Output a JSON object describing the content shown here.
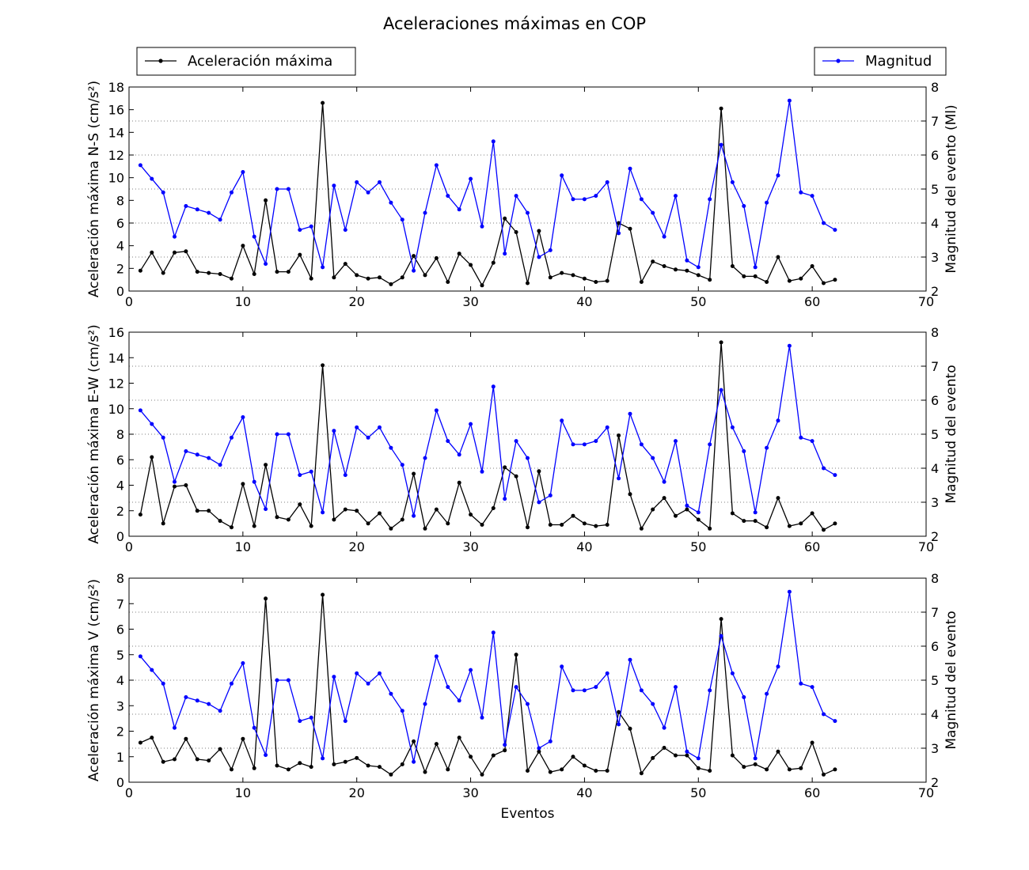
{
  "figure": {
    "title": "Aceleraciones máximas en COP",
    "xlabel": "Eventos"
  },
  "legend": {
    "left_label": "Aceleración máxima",
    "right_label": "Magnitud",
    "left_color": "#000000",
    "right_color": "#0000ff"
  },
  "chart_data": [
    {
      "type": "line",
      "x": [
        1,
        2,
        3,
        4,
        5,
        6,
        7,
        8,
        9,
        10,
        11,
        12,
        13,
        14,
        15,
        16,
        17,
        18,
        19,
        20,
        21,
        22,
        23,
        24,
        25,
        26,
        27,
        28,
        29,
        30,
        31,
        32,
        33,
        34,
        35,
        36,
        37,
        38,
        39,
        40,
        41,
        42,
        43,
        44,
        45,
        46,
        47,
        48,
        49,
        50,
        51,
        52,
        53,
        54,
        55,
        56,
        57,
        58,
        59,
        60,
        61,
        62
      ],
      "xlim": [
        0,
        70
      ],
      "xticks": [
        0,
        10,
        20,
        30,
        40,
        50,
        60,
        70
      ],
      "ylabel": "Aceleración máxima N-S (cm/s²)",
      "ylim": [
        0,
        18
      ],
      "yticks": [
        0,
        2,
        4,
        6,
        8,
        10,
        12,
        14,
        16,
        18
      ],
      "y2label": "Magnitud del evento (Ml)",
      "y2lim": [
        2,
        8
      ],
      "y2ticks": [
        2,
        3,
        4,
        5,
        6,
        7,
        8
      ],
      "grid": "horizontal-dotted",
      "series": [
        {
          "name": "Aceleración máxima",
          "axis": "left",
          "color": "#000000",
          "values": [
            1.8,
            3.4,
            1.6,
            3.4,
            3.5,
            1.7,
            1.6,
            1.5,
            1.1,
            4.0,
            1.5,
            8.0,
            1.7,
            1.7,
            3.2,
            1.1,
            16.6,
            1.2,
            2.4,
            1.4,
            1.1,
            1.2,
            0.6,
            1.2,
            3.1,
            1.4,
            2.9,
            0.8,
            3.3,
            2.3,
            0.5,
            2.5,
            6.4,
            5.2,
            0.7,
            5.3,
            1.2,
            1.6,
            1.4,
            1.1,
            0.8,
            0.9,
            6.0,
            5.5,
            0.8,
            2.6,
            2.2,
            1.9,
            1.8,
            1.4,
            1.0,
            16.1,
            2.2,
            1.3,
            1.3,
            0.8,
            3.0,
            0.9,
            1.1,
            2.2,
            0.7,
            1.0
          ]
        },
        {
          "name": "Magnitud",
          "axis": "right",
          "color": "#0000ff",
          "values": [
            5.7,
            5.3,
            4.9,
            3.6,
            4.5,
            4.4,
            4.3,
            4.1,
            4.9,
            5.5,
            3.6,
            2.8,
            5.0,
            5.0,
            3.8,
            3.9,
            2.7,
            5.1,
            3.8,
            5.2,
            4.9,
            5.2,
            4.6,
            4.1,
            2.6,
            4.3,
            5.7,
            4.8,
            4.4,
            5.3,
            3.9,
            6.4,
            3.1,
            4.8,
            4.3,
            3.0,
            3.2,
            5.4,
            4.7,
            4.7,
            4.8,
            5.2,
            3.7,
            5.6,
            4.7,
            4.3,
            3.6,
            4.8,
            2.9,
            2.7,
            4.7,
            6.3,
            5.2,
            4.5,
            2.7,
            4.6,
            5.4,
            7.6,
            4.9,
            4.8,
            4.0,
            3.8
          ]
        }
      ]
    },
    {
      "type": "line",
      "x": [
        1,
        2,
        3,
        4,
        5,
        6,
        7,
        8,
        9,
        10,
        11,
        12,
        13,
        14,
        15,
        16,
        17,
        18,
        19,
        20,
        21,
        22,
        23,
        24,
        25,
        26,
        27,
        28,
        29,
        30,
        31,
        32,
        33,
        34,
        35,
        36,
        37,
        38,
        39,
        40,
        41,
        42,
        43,
        44,
        45,
        46,
        47,
        48,
        49,
        50,
        51,
        52,
        53,
        54,
        55,
        56,
        57,
        58,
        59,
        60,
        61,
        62
      ],
      "xlim": [
        0,
        70
      ],
      "xticks": [
        0,
        10,
        20,
        30,
        40,
        50,
        60,
        70
      ],
      "ylabel": "Aceleración máxima E-W (cm/s²)",
      "ylim": [
        0,
        16
      ],
      "yticks": [
        0,
        2,
        4,
        6,
        8,
        10,
        12,
        14,
        16
      ],
      "y2label": "Magnitud del evento",
      "y2lim": [
        2,
        8
      ],
      "y2ticks": [
        2,
        3,
        4,
        5,
        6,
        7,
        8
      ],
      "grid": "horizontal-dotted",
      "series": [
        {
          "name": "Aceleración máxima",
          "axis": "left",
          "color": "#000000",
          "values": [
            1.7,
            6.2,
            1.0,
            3.9,
            4.0,
            2.0,
            2.0,
            1.2,
            0.7,
            4.1,
            0.8,
            5.6,
            1.5,
            1.3,
            2.5,
            0.8,
            13.4,
            1.3,
            2.1,
            2.0,
            1.0,
            1.8,
            0.6,
            1.3,
            4.9,
            0.6,
            2.1,
            1.0,
            4.2,
            1.7,
            0.9,
            2.2,
            5.4,
            4.7,
            0.7,
            5.1,
            0.9,
            0.9,
            1.6,
            1.0,
            0.8,
            0.9,
            7.9,
            3.3,
            0.6,
            2.1,
            3.0,
            1.6,
            2.1,
            1.3,
            0.6,
            15.2,
            1.8,
            1.2,
            1.2,
            0.7,
            3.0,
            0.8,
            1.0,
            1.8,
            0.5,
            1.0
          ]
        },
        {
          "name": "Magnitud",
          "axis": "right",
          "color": "#0000ff",
          "values": [
            5.7,
            5.3,
            4.9,
            3.6,
            4.5,
            4.4,
            4.3,
            4.1,
            4.9,
            5.5,
            3.6,
            2.8,
            5.0,
            5.0,
            3.8,
            3.9,
            2.7,
            5.1,
            3.8,
            5.2,
            4.9,
            5.2,
            4.6,
            4.1,
            2.6,
            4.3,
            5.7,
            4.8,
            4.4,
            5.3,
            3.9,
            6.4,
            3.1,
            4.8,
            4.3,
            3.0,
            3.2,
            5.4,
            4.7,
            4.7,
            4.8,
            5.2,
            3.7,
            5.6,
            4.7,
            4.3,
            3.6,
            4.8,
            2.9,
            2.7,
            4.7,
            6.3,
            5.2,
            4.5,
            2.7,
            4.6,
            5.4,
            7.6,
            4.9,
            4.8,
            4.0,
            3.8
          ]
        }
      ]
    },
    {
      "type": "line",
      "x": [
        1,
        2,
        3,
        4,
        5,
        6,
        7,
        8,
        9,
        10,
        11,
        12,
        13,
        14,
        15,
        16,
        17,
        18,
        19,
        20,
        21,
        22,
        23,
        24,
        25,
        26,
        27,
        28,
        29,
        30,
        31,
        32,
        33,
        34,
        35,
        36,
        37,
        38,
        39,
        40,
        41,
        42,
        43,
        44,
        45,
        46,
        47,
        48,
        49,
        50,
        51,
        52,
        53,
        54,
        55,
        56,
        57,
        58,
        59,
        60,
        61,
        62
      ],
      "xlim": [
        0,
        70
      ],
      "xticks": [
        0,
        10,
        20,
        30,
        40,
        50,
        60,
        70
      ],
      "ylabel": "Aceleración máxima V (cm/s²)",
      "ylim": [
        0,
        8
      ],
      "yticks": [
        0,
        1,
        2,
        3,
        4,
        5,
        6,
        7,
        8
      ],
      "y2label": "Magnitud del evento",
      "y2lim": [
        2,
        8
      ],
      "y2ticks": [
        2,
        3,
        4,
        5,
        6,
        7,
        8
      ],
      "grid": "horizontal-dotted",
      "series": [
        {
          "name": "Aceleración máxima",
          "axis": "left",
          "color": "#000000",
          "values": [
            1.55,
            1.75,
            0.8,
            0.9,
            1.7,
            0.9,
            0.85,
            1.3,
            0.5,
            1.7,
            0.55,
            7.2,
            0.65,
            0.5,
            0.75,
            0.6,
            7.35,
            0.7,
            0.8,
            0.95,
            0.65,
            0.6,
            0.3,
            0.7,
            1.6,
            0.4,
            1.5,
            0.5,
            1.75,
            1.0,
            0.3,
            1.05,
            1.25,
            5.0,
            0.45,
            1.2,
            0.4,
            0.5,
            1.0,
            0.65,
            0.45,
            0.45,
            2.75,
            2.1,
            0.35,
            0.95,
            1.35,
            1.05,
            1.05,
            0.55,
            0.45,
            6.4,
            1.05,
            0.6,
            0.7,
            0.5,
            1.2,
            0.5,
            0.55,
            1.55,
            0.3,
            0.5
          ]
        },
        {
          "name": "Magnitud",
          "axis": "right",
          "color": "#0000ff",
          "values": [
            5.7,
            5.3,
            4.9,
            3.6,
            4.5,
            4.4,
            4.3,
            4.1,
            4.9,
            5.5,
            3.6,
            2.8,
            5.0,
            5.0,
            3.8,
            3.9,
            2.7,
            5.1,
            3.8,
            5.2,
            4.9,
            5.2,
            4.6,
            4.1,
            2.6,
            4.3,
            5.7,
            4.8,
            4.4,
            5.3,
            3.9,
            6.4,
            3.1,
            4.8,
            4.3,
            3.0,
            3.2,
            5.4,
            4.7,
            4.7,
            4.8,
            5.2,
            3.7,
            5.6,
            4.7,
            4.3,
            3.6,
            4.8,
            2.9,
            2.7,
            4.7,
            6.3,
            5.2,
            4.5,
            2.7,
            4.6,
            5.4,
            7.6,
            4.9,
            4.8,
            4.0,
            3.8
          ]
        }
      ]
    }
  ]
}
